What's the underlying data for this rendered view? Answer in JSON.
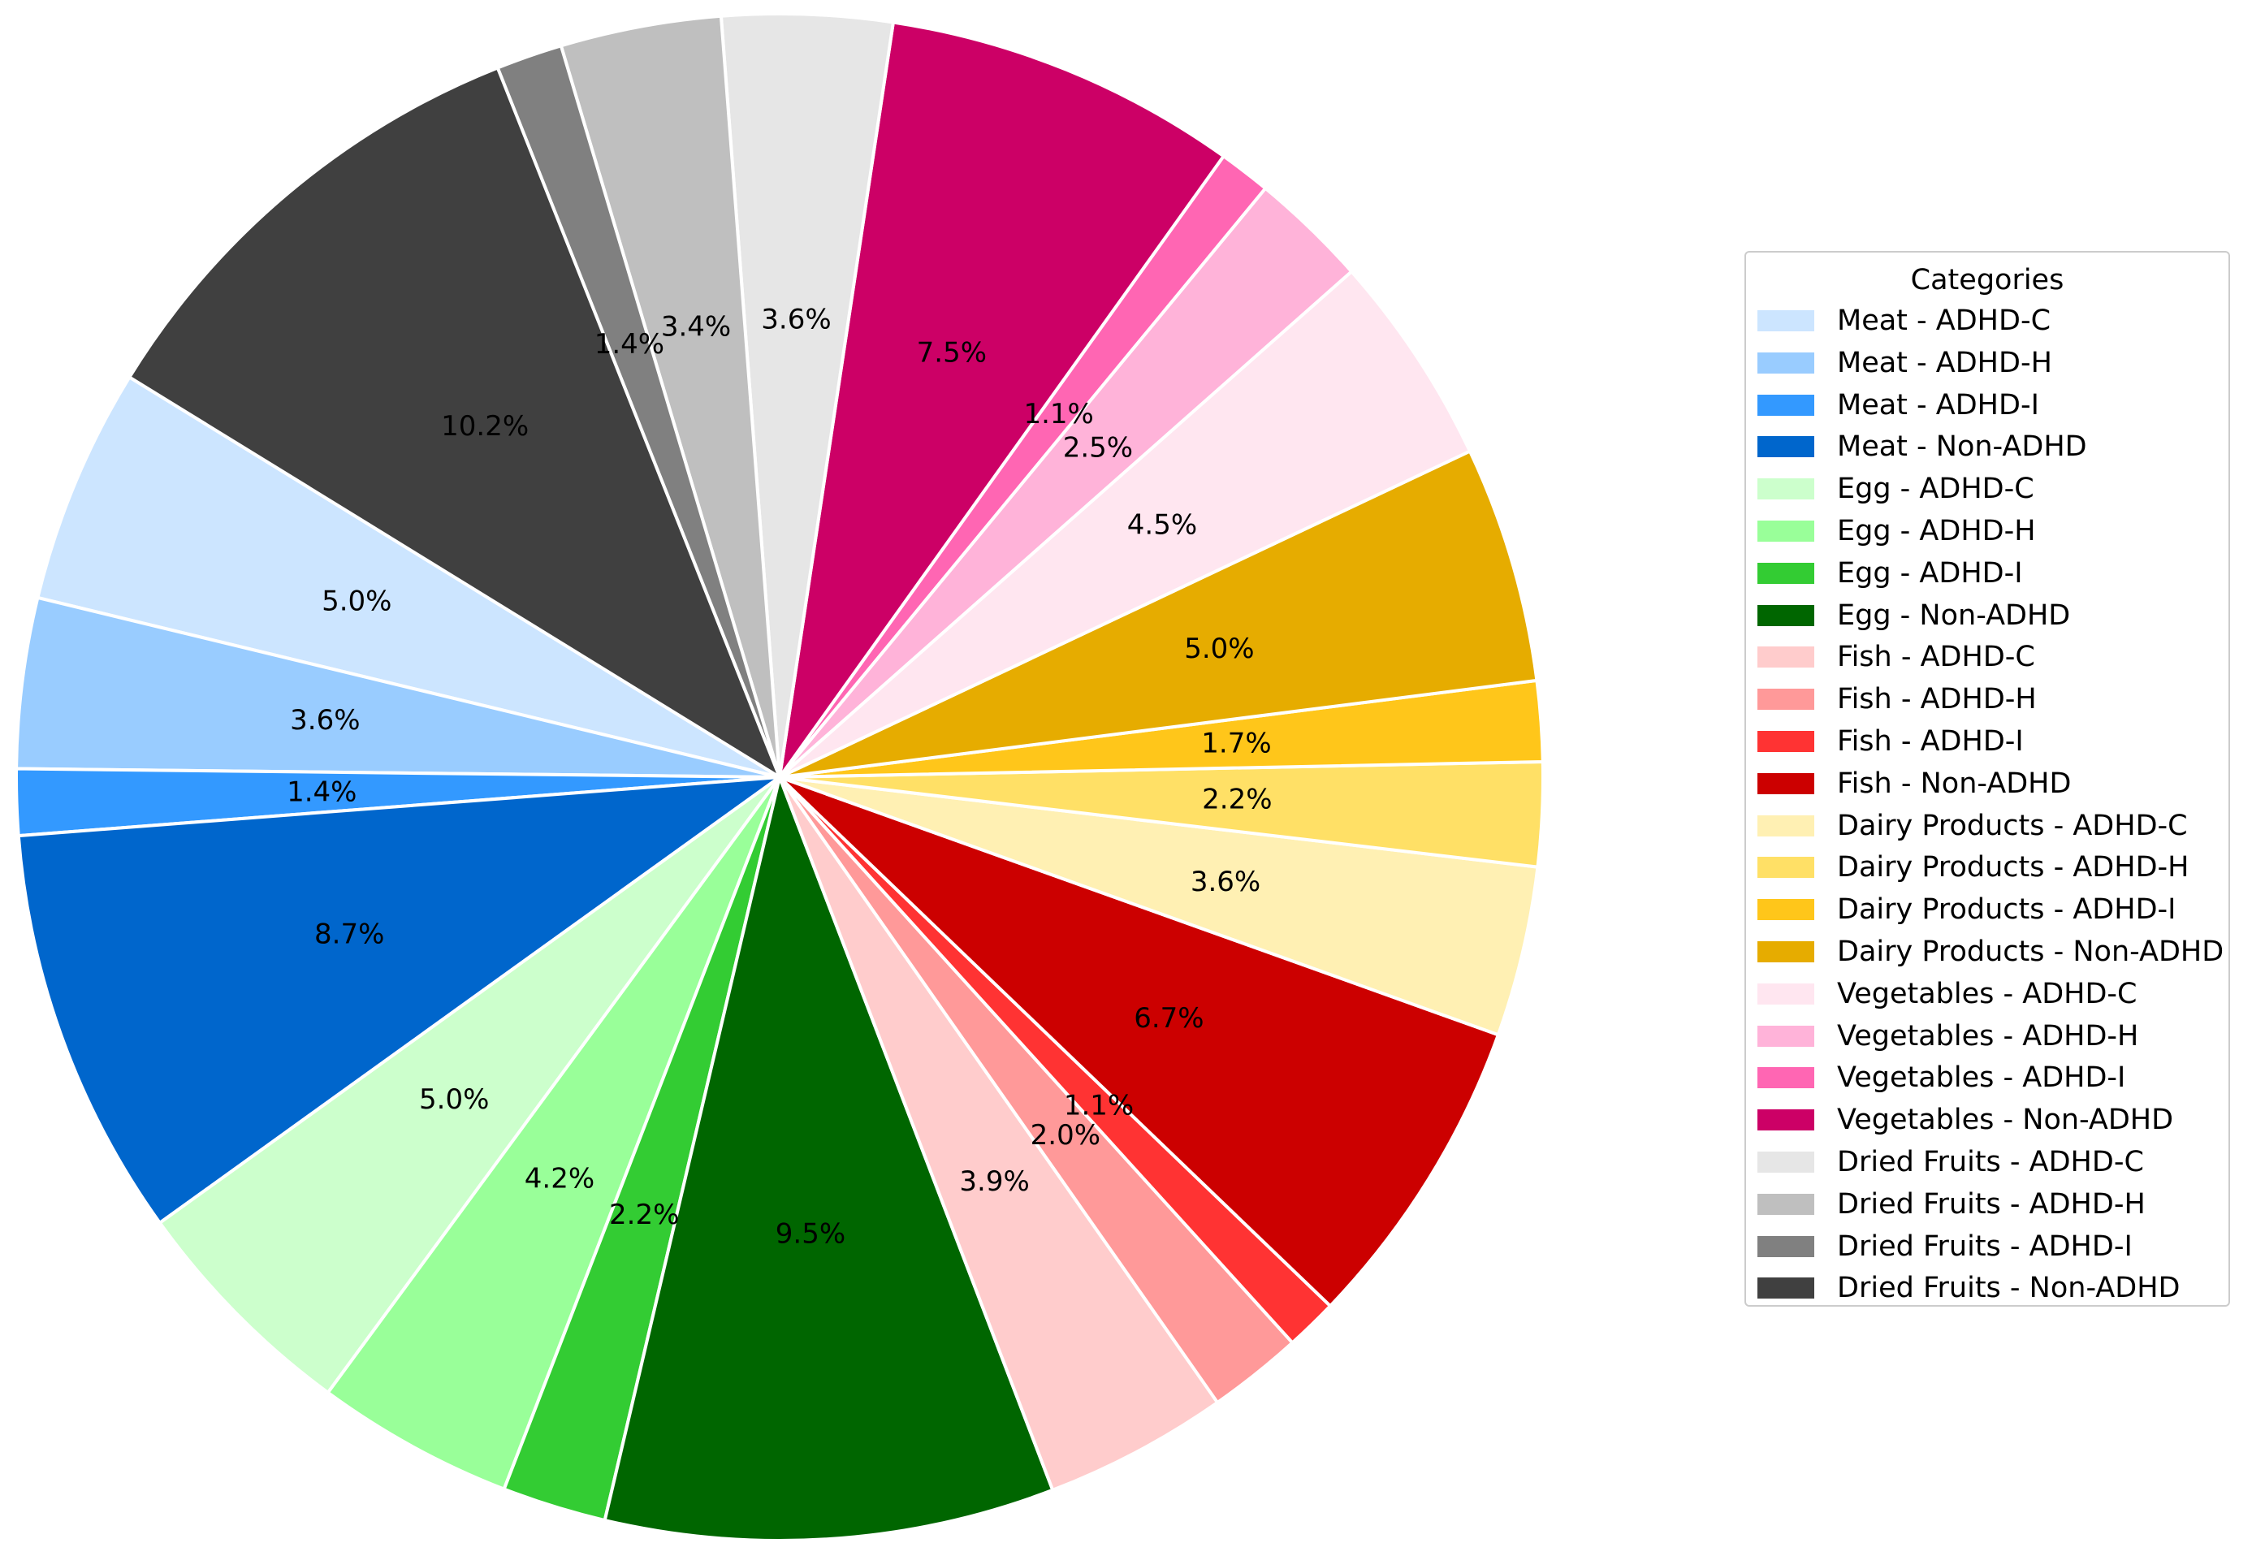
{
  "chart_data": {
    "type": "pie",
    "legend": {
      "title": "Categories",
      "placement": "right"
    },
    "slices": [
      {
        "label": "Meat - ADHD-C",
        "pct": 5.0,
        "pct_text": "5.0%",
        "color": "#cce5ff"
      },
      {
        "label": "Meat - ADHD-H",
        "pct": 3.6,
        "pct_text": "3.6%",
        "color": "#99ccff"
      },
      {
        "label": "Meat - ADHD-I",
        "pct": 1.4,
        "pct_text": "1.4%",
        "color": "#3399ff"
      },
      {
        "label": "Meat - Non-ADHD",
        "pct": 8.7,
        "pct_text": "8.7%",
        "color": "#0066cc"
      },
      {
        "label": "Egg - ADHD-C",
        "pct": 5.0,
        "pct_text": "5.0%",
        "color": "#ccffcc"
      },
      {
        "label": "Egg - ADHD-H",
        "pct": 4.2,
        "pct_text": "4.2%",
        "color": "#99ff99"
      },
      {
        "label": "Egg - ADHD-I",
        "pct": 2.2,
        "pct_text": "2.2%",
        "color": "#33cc33"
      },
      {
        "label": "Egg - Non-ADHD",
        "pct": 9.5,
        "pct_text": "9.5%",
        "color": "#006600"
      },
      {
        "label": "Fish - ADHD-C",
        "pct": 3.9,
        "pct_text": "3.9%",
        "color": "#ffcccc"
      },
      {
        "label": "Fish - ADHD-H",
        "pct": 2.0,
        "pct_text": "2.0%",
        "color": "#ff9999"
      },
      {
        "label": "Fish - ADHD-I",
        "pct": 1.1,
        "pct_text": "1.1%",
        "color": "#ff3333"
      },
      {
        "label": "Fish - Non-ADHD",
        "pct": 6.7,
        "pct_text": "6.7%",
        "color": "#cc0000"
      },
      {
        "label": "Dairy Products - ADHD-C",
        "pct": 3.6,
        "pct_text": "3.6%",
        "color": "#fff0b3"
      },
      {
        "label": "Dairy Products - ADHD-H",
        "pct": 2.2,
        "pct_text": "2.2%",
        "color": "#ffe066"
      },
      {
        "label": "Dairy Products - ADHD-I",
        "pct": 1.7,
        "pct_text": "1.7%",
        "color": "#ffc61a"
      },
      {
        "label": "Dairy Products - Non-ADHD",
        "pct": 5.0,
        "pct_text": "5.0%",
        "color": "#e6ac00"
      },
      {
        "label": "Vegetables - ADHD-C",
        "pct": 4.5,
        "pct_text": "4.5%",
        "color": "#ffe6f0"
      },
      {
        "label": "Vegetables - ADHD-H",
        "pct": 2.5,
        "pct_text": "2.5%",
        "color": "#ffb3d9"
      },
      {
        "label": "Vegetables - ADHD-I",
        "pct": 1.1,
        "pct_text": "1.1%",
        "color": "#ff66b3"
      },
      {
        "label": "Vegetables - Non-ADHD",
        "pct": 7.5,
        "pct_text": "7.5%",
        "color": "#cc0066"
      },
      {
        "label": "Dried Fruits - ADHD-C",
        "pct": 3.6,
        "pct_text": "3.6%",
        "color": "#e6e6e6"
      },
      {
        "label": "Dried Fruits - ADHD-H",
        "pct": 3.4,
        "pct_text": "3.4%",
        "color": "#bfbfbf"
      },
      {
        "label": "Dried Fruits - ADHD-I",
        "pct": 1.4,
        "pct_text": "1.4%",
        "color": "#808080"
      },
      {
        "label": "Dried Fruits - Non-ADHD",
        "pct": 10.2,
        "pct_text": "10.2%",
        "color": "#404040"
      }
    ]
  }
}
